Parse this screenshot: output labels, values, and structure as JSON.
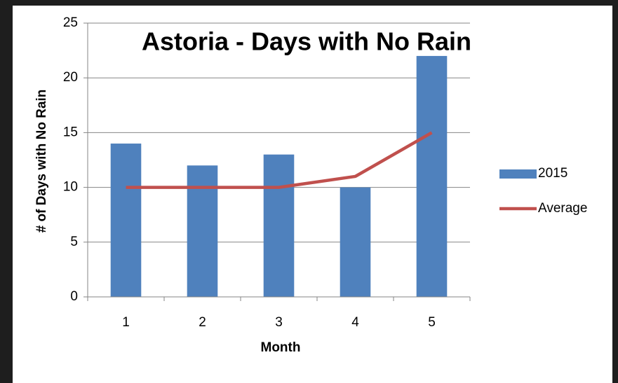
{
  "chart_data": {
    "type": "bar",
    "title": "Astoria - Days with No Rain",
    "x_label": "Month",
    "y_label": "# of Days with No Rain",
    "categories": [
      "1",
      "2",
      "3",
      "4",
      "5"
    ],
    "series": [
      {
        "name": "2015",
        "type": "bar",
        "color": "#4f81bd",
        "values": [
          14,
          12,
          13,
          10,
          22
        ]
      },
      {
        "name": "Average",
        "type": "line",
        "color": "#c0504d",
        "values": [
          10,
          10,
          10,
          11,
          15
        ]
      }
    ],
    "ylim": [
      0,
      25
    ],
    "yticks": [
      0,
      5,
      10,
      15,
      20,
      25
    ],
    "grid": true,
    "legend": "right"
  }
}
